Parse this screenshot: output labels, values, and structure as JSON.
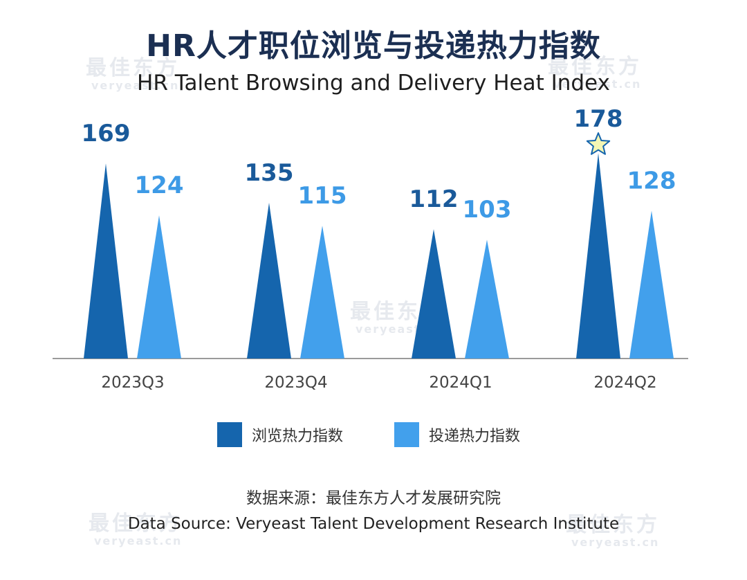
{
  "page": {
    "title_cn": "HR人才职位浏览与投递热力指数",
    "title_en": "HR Talent  Browsing and Delivery Heat Index",
    "source_cn": "数据来源：最佳东方人才发展研究院",
    "source_en": "Data Source: Veryeast Talent Development Research Institute"
  },
  "watermark": {
    "cn": "最佳东方",
    "en": "veryeast.cn"
  },
  "colors": {
    "browse": "#1565ad",
    "delivery": "#42a0ec",
    "browse_label": "#1a5a9a",
    "delivery_label": "#3d9ae6",
    "axis": "#9a9a9a",
    "tick": "#444444",
    "star_fill": "#f4f6b4",
    "star_stroke": "#1565ad"
  },
  "chart_data": {
    "type": "bar",
    "title": "HR人才职位浏览与投递热力指数",
    "subtitle": "HR Talent  Browsing and Delivery Heat Index",
    "categories": [
      "2023Q3",
      "2023Q4",
      "2024Q1",
      "2024Q2"
    ],
    "series": [
      {
        "name": "浏览热力指数",
        "values": [
          169,
          135,
          112,
          178
        ]
      },
      {
        "name": "投递热力指数",
        "values": [
          124,
          115,
          103,
          128
        ]
      }
    ],
    "ylim": [
      0,
      190
    ],
    "grid": false,
    "legend": "bottom-center",
    "highlight": {
      "series": 0,
      "category": "2024Q2",
      "marker": "star"
    }
  }
}
